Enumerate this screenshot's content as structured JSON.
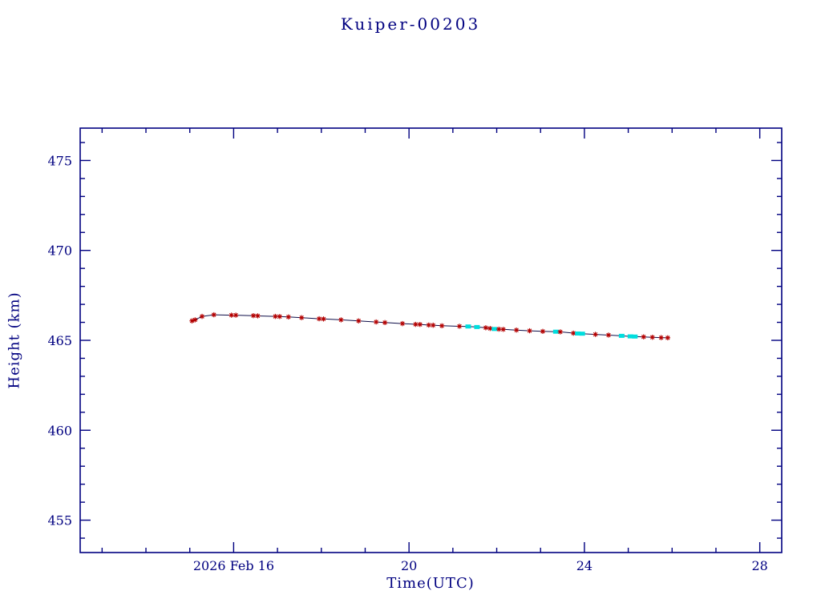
{
  "chart_data": {
    "type": "line",
    "title": "Kuiper-00203",
    "xlabel": "Time(UTC)",
    "ylabel": "Height (km)",
    "xlim": [
      12.5,
      28.5
    ],
    "ylim": [
      453.2,
      476.8
    ],
    "x_major_ticks": [
      16,
      20,
      24,
      28
    ],
    "x_major_labels": [
      "2026 Feb 16",
      "20",
      "24",
      "28"
    ],
    "x_minor_step": 1,
    "y_major_ticks": [
      455,
      460,
      465,
      470,
      475
    ],
    "y_major_labels": [
      "455",
      "460",
      "465",
      "470",
      "475"
    ],
    "y_minor_step": 1,
    "grid": false,
    "legend": "none",
    "axis_color": "#000080",
    "line_color": "#10104a",
    "marker_red_color": "#b40000",
    "marker_cyan_color": "#00dede",
    "series": [
      {
        "name": "height-track",
        "points": [
          [
            15.05,
            466.08,
            "r"
          ],
          [
            15.12,
            466.14,
            "r"
          ],
          [
            15.28,
            466.33,
            "r"
          ],
          [
            15.55,
            466.42,
            "r"
          ],
          [
            15.95,
            466.4,
            "r"
          ],
          [
            16.05,
            466.4,
            "r"
          ],
          [
            16.45,
            466.37,
            "r"
          ],
          [
            16.55,
            466.36,
            "r"
          ],
          [
            16.95,
            466.33,
            "r"
          ],
          [
            17.05,
            466.32,
            "r"
          ],
          [
            17.25,
            466.3,
            "r"
          ],
          [
            17.55,
            466.26,
            "r"
          ],
          [
            17.95,
            466.2,
            "r"
          ],
          [
            18.05,
            466.19,
            "r"
          ],
          [
            18.45,
            466.14,
            "r"
          ],
          [
            18.85,
            466.08,
            "r"
          ],
          [
            19.25,
            466.02,
            "r"
          ],
          [
            19.45,
            465.99,
            "r"
          ],
          [
            19.85,
            465.93,
            "r"
          ],
          [
            20.15,
            465.89,
            "r"
          ],
          [
            20.25,
            465.88,
            "r"
          ],
          [
            20.45,
            465.85,
            "r"
          ],
          [
            20.55,
            465.84,
            "r"
          ],
          [
            20.75,
            465.81,
            "r"
          ],
          [
            21.15,
            465.78,
            "r"
          ],
          [
            21.35,
            465.77,
            "c"
          ],
          [
            21.55,
            465.74,
            "c"
          ],
          [
            21.75,
            465.7,
            "r"
          ],
          [
            21.85,
            465.66,
            "r"
          ],
          [
            21.95,
            465.63,
            "c"
          ],
          [
            22.05,
            465.62,
            "r"
          ],
          [
            22.15,
            465.61,
            "r"
          ],
          [
            22.45,
            465.57,
            "r"
          ],
          [
            22.75,
            465.53,
            "r"
          ],
          [
            23.05,
            465.5,
            "r"
          ],
          [
            23.35,
            465.48,
            "c"
          ],
          [
            23.45,
            465.47,
            "r"
          ],
          [
            23.75,
            465.4,
            "r"
          ],
          [
            23.85,
            465.38,
            "c"
          ],
          [
            23.95,
            465.37,
            "c"
          ],
          [
            24.25,
            465.33,
            "r"
          ],
          [
            24.55,
            465.29,
            "r"
          ],
          [
            24.85,
            465.25,
            "c"
          ],
          [
            25.05,
            465.22,
            "c"
          ],
          [
            25.15,
            465.21,
            "c"
          ],
          [
            25.35,
            465.19,
            "r"
          ],
          [
            25.55,
            465.17,
            "r"
          ],
          [
            25.75,
            465.15,
            "r"
          ],
          [
            25.9,
            465.14,
            "r"
          ]
        ]
      }
    ]
  }
}
